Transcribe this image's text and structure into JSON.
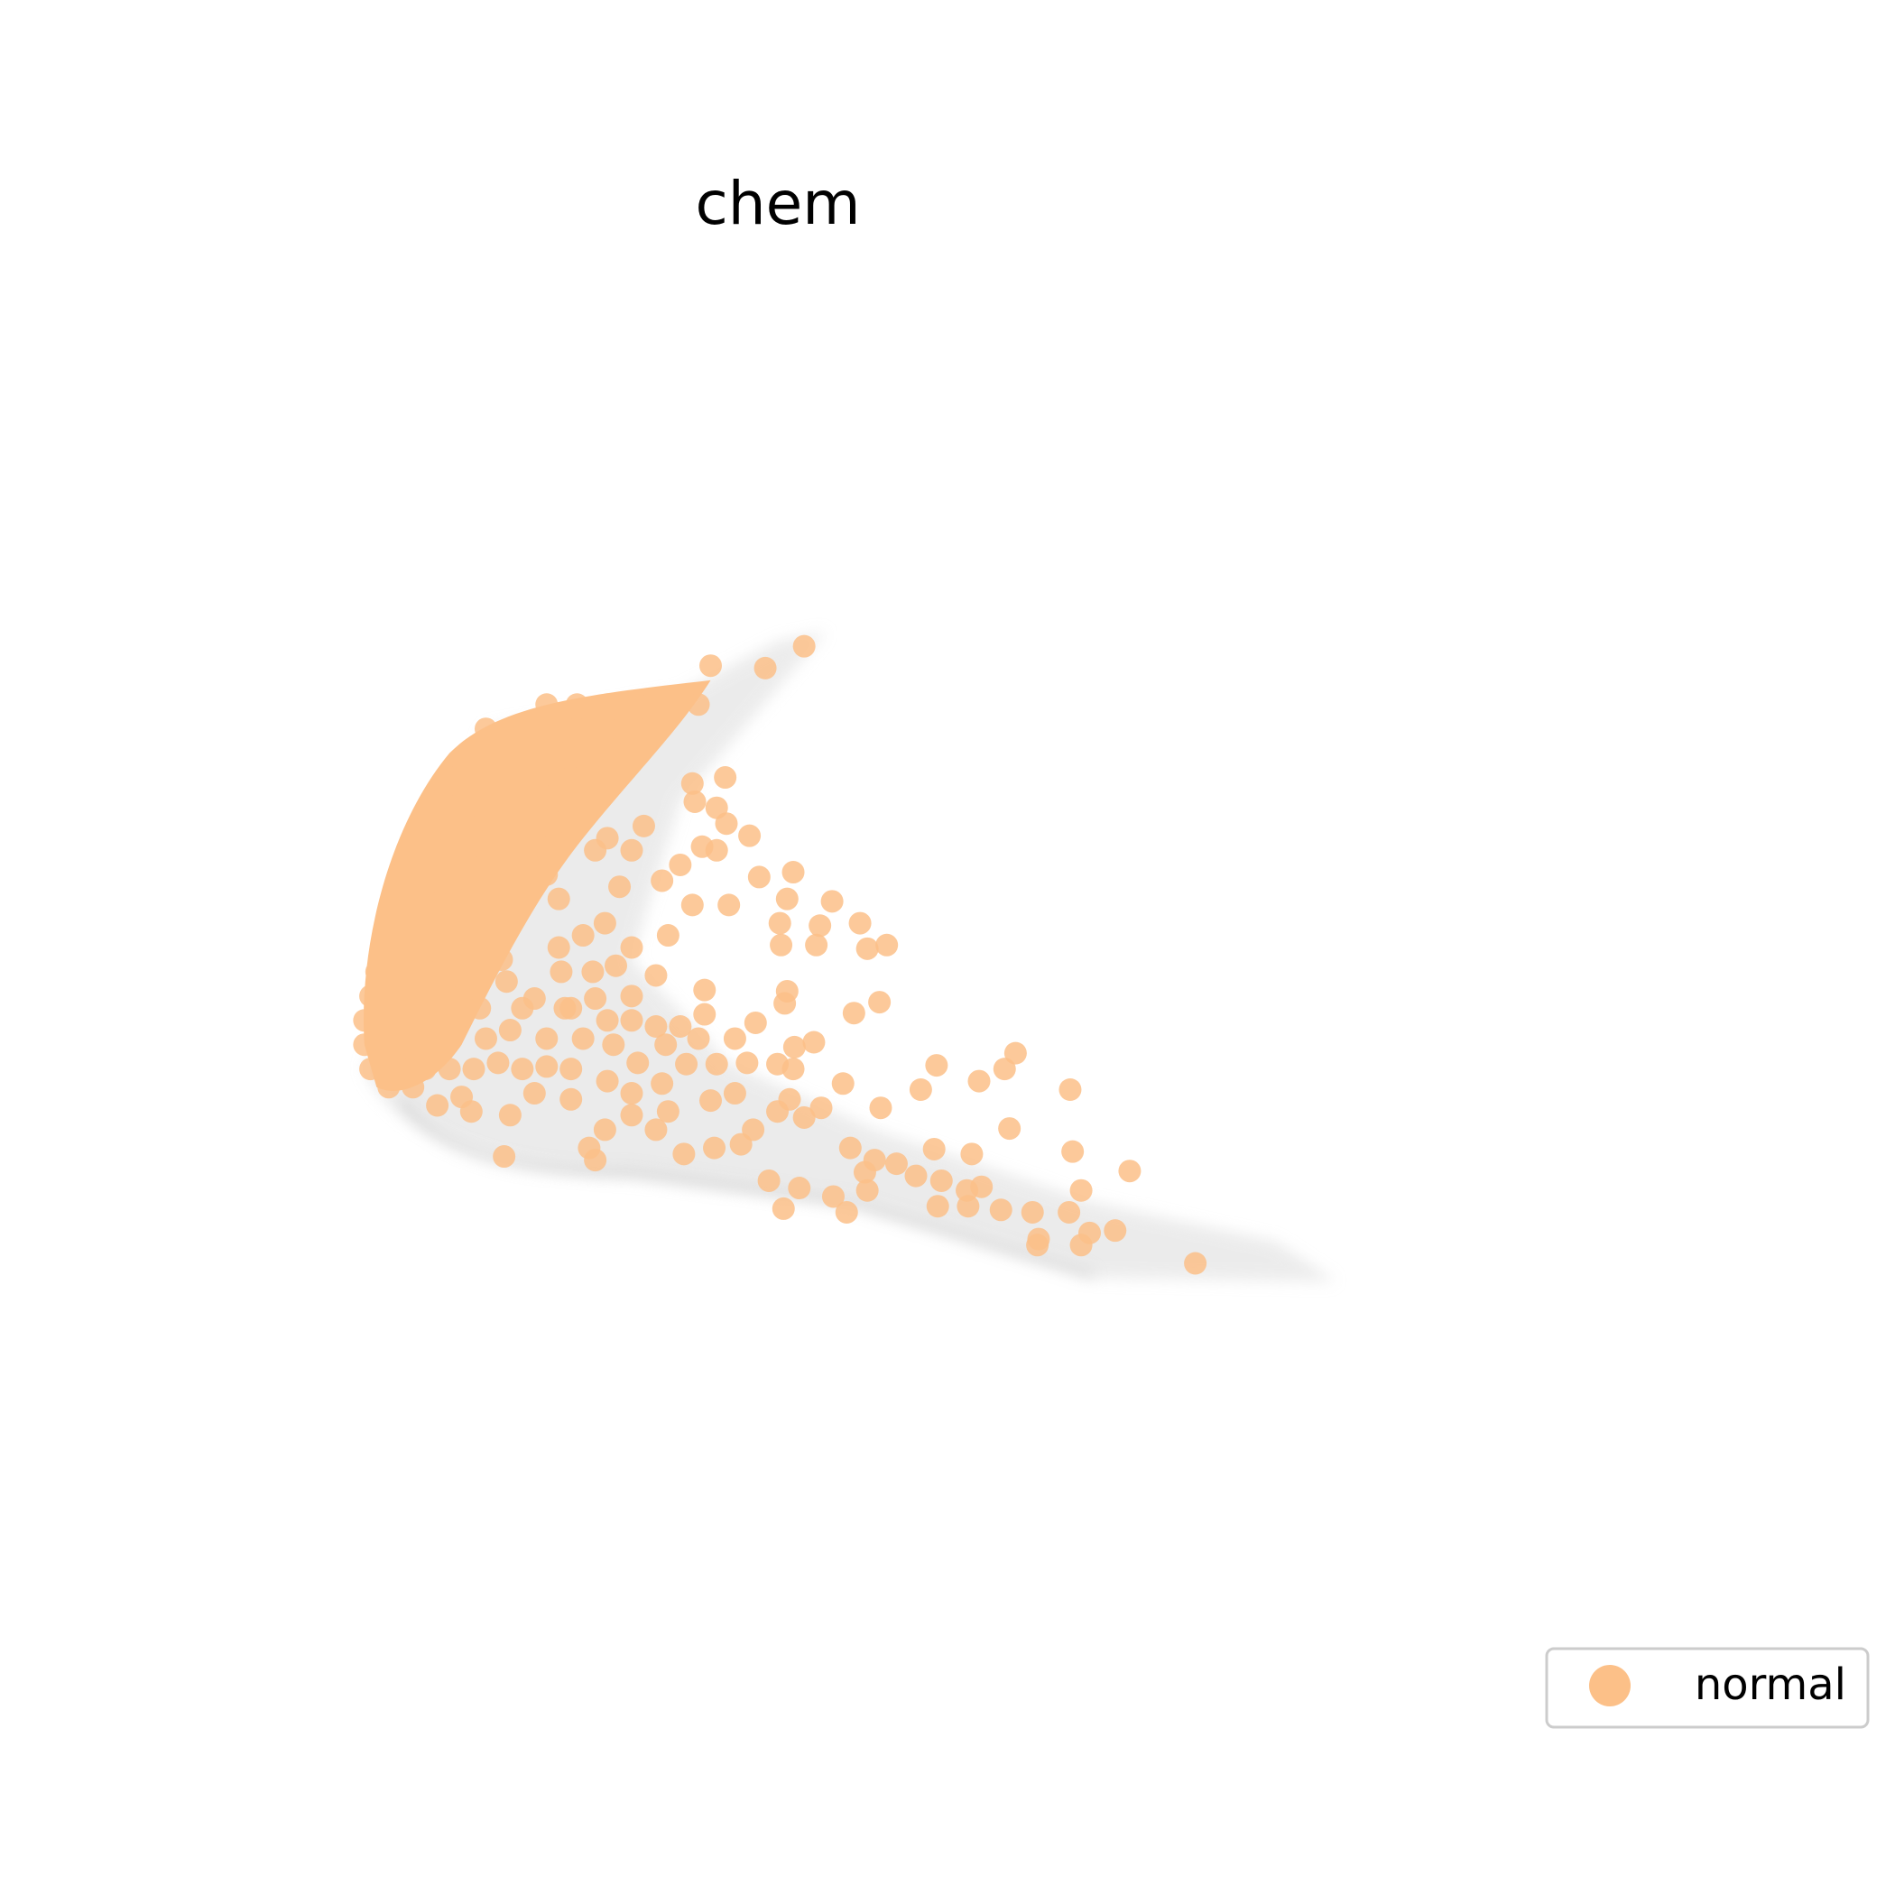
{
  "chart_data": {
    "type": "scatter",
    "title": "chem",
    "legend": "lower right",
    "xlim": [
      0,
      1560
    ],
    "ylim": [
      1560,
      0
    ],
    "series": [
      {
        "name": "normal",
        "color": "#fcc088",
        "x": [
          585,
          662,
          630,
          597,
          570,
          572,
          590,
          598,
          617,
          578,
          590,
          560,
          625,
          653,
          648,
          685,
          708,
          675,
          642,
          600,
          570,
          550,
          498,
          643,
          672,
          714,
          730,
          540,
          580,
          648,
          646,
          622,
          703,
          724,
          670,
          654,
          605,
          580,
          560,
          520,
          490,
          465,
          440,
          417,
          413,
          488,
          507,
          462,
          771,
          806,
          827,
          836,
          758,
          694,
          725,
          881,
          831,
          883,
          930,
          800,
          769,
          890,
          880,
          850,
          824,
          808,
          796,
          775,
          772,
          797,
          754,
          738,
          720,
          712,
          700,
          686,
          697,
          714,
          645,
          658,
          633,
          918,
          897,
          890,
          855,
          854,
          984,
          676,
          662,
          640,
          620,
          610,
          588,
          563,
          540,
          520,
          498,
          485,
          490,
          415,
          388,
          360,
          380,
          420,
          440,
          470,
          500,
          545,
          565,
          590,
          615,
          640,
          653,
          650,
          605,
          585,
          550,
          520,
          470,
          450,
          430,
          410,
          390,
          370,
          400,
          420,
          450,
          480,
          505,
          525,
          548,
          575,
          540,
          520,
          500,
          470,
          430,
          395,
          380,
          460,
          480,
          520,
          510,
          490,
          500,
          520,
          530,
          545,
          460,
          450,
          475,
          500,
          525,
          550,
          575,
          400,
          425,
          450,
          475,
          500,
          525,
          390,
          415,
          440,
          465,
          490,
          515,
          370,
          395,
          420,
          445,
          470,
          495,
          355,
          380,
          405,
          430,
          455,
          480,
          345,
          370,
          395,
          420,
          445,
          470,
          335,
          360,
          385,
          410,
          435,
          460,
          330,
          355,
          380,
          405,
          430,
          450,
          325,
          350,
          375,
          400,
          425,
          320,
          345,
          370,
          395,
          415,
          315,
          340,
          365,
          390,
          410,
          310,
          335,
          360,
          385,
          400,
          305,
          330,
          355,
          380,
          300,
          325,
          350,
          375,
          300,
          325,
          350,
          305,
          330,
          350,
          320,
          340
        ],
        "values": [
          548,
          532,
          550,
          640,
          645,
          660,
          665,
          678,
          688,
          697,
          700,
          712,
          722,
          718,
          740,
          742,
          760,
          762,
          760,
          745,
          745,
          770,
          760,
          778,
          778,
          781,
          778,
          803,
          815,
          816,
          826,
          842,
          834,
          825,
          858,
          862,
          855,
          835,
          845,
          820,
          822,
          830,
          822,
          808,
          790,
          800,
          795,
          800,
          877,
          890,
          880,
          867,
          897,
          892,
          912,
          897,
          929,
          948,
          964,
          950,
          946,
          980,
          998,
          998,
          996,
          977,
          980,
          972,
          993,
          993,
          968,
          958,
          955,
          965,
          945,
          985,
          998,
          980,
          995,
          978,
          972,
          1013,
          1015,
          1025,
          1020,
          1025,
          1040,
          912,
          920,
          915,
          930,
          942,
          945,
          950,
          930,
          918,
          930,
          945,
          955,
          952,
          915,
          910,
          903,
          918,
          900,
          905,
          890,
          892,
          876,
          876,
          875,
          876,
          880,
          905,
          900,
          906,
          915,
          900,
          880,
          878,
          880,
          875,
          880,
          880,
          855,
          848,
          855,
          855,
          860,
          875,
          860,
          855,
          845,
          840,
          840,
          830,
          830,
          830,
          815,
          780,
          770,
          780,
          730,
          700,
          690,
          700,
          680,
          725,
          740,
          580,
          580,
          580,
          580,
          580,
          580,
          600,
          600,
          600,
          600,
          600,
          600,
          620,
          620,
          620,
          620,
          620,
          620,
          640,
          640,
          640,
          640,
          640,
          640,
          660,
          660,
          660,
          660,
          660,
          660,
          680,
          680,
          680,
          680,
          680,
          680,
          700,
          700,
          700,
          700,
          700,
          700,
          720,
          720,
          720,
          720,
          720,
          720,
          740,
          740,
          740,
          740,
          740,
          760,
          760,
          760,
          760,
          760,
          780,
          780,
          780,
          780,
          780,
          800,
          800,
          800,
          800,
          800,
          820,
          820,
          820,
          820,
          840,
          840,
          840,
          840,
          860,
          860,
          860,
          880,
          880,
          880,
          895,
          895
        ]
      }
    ]
  }
}
